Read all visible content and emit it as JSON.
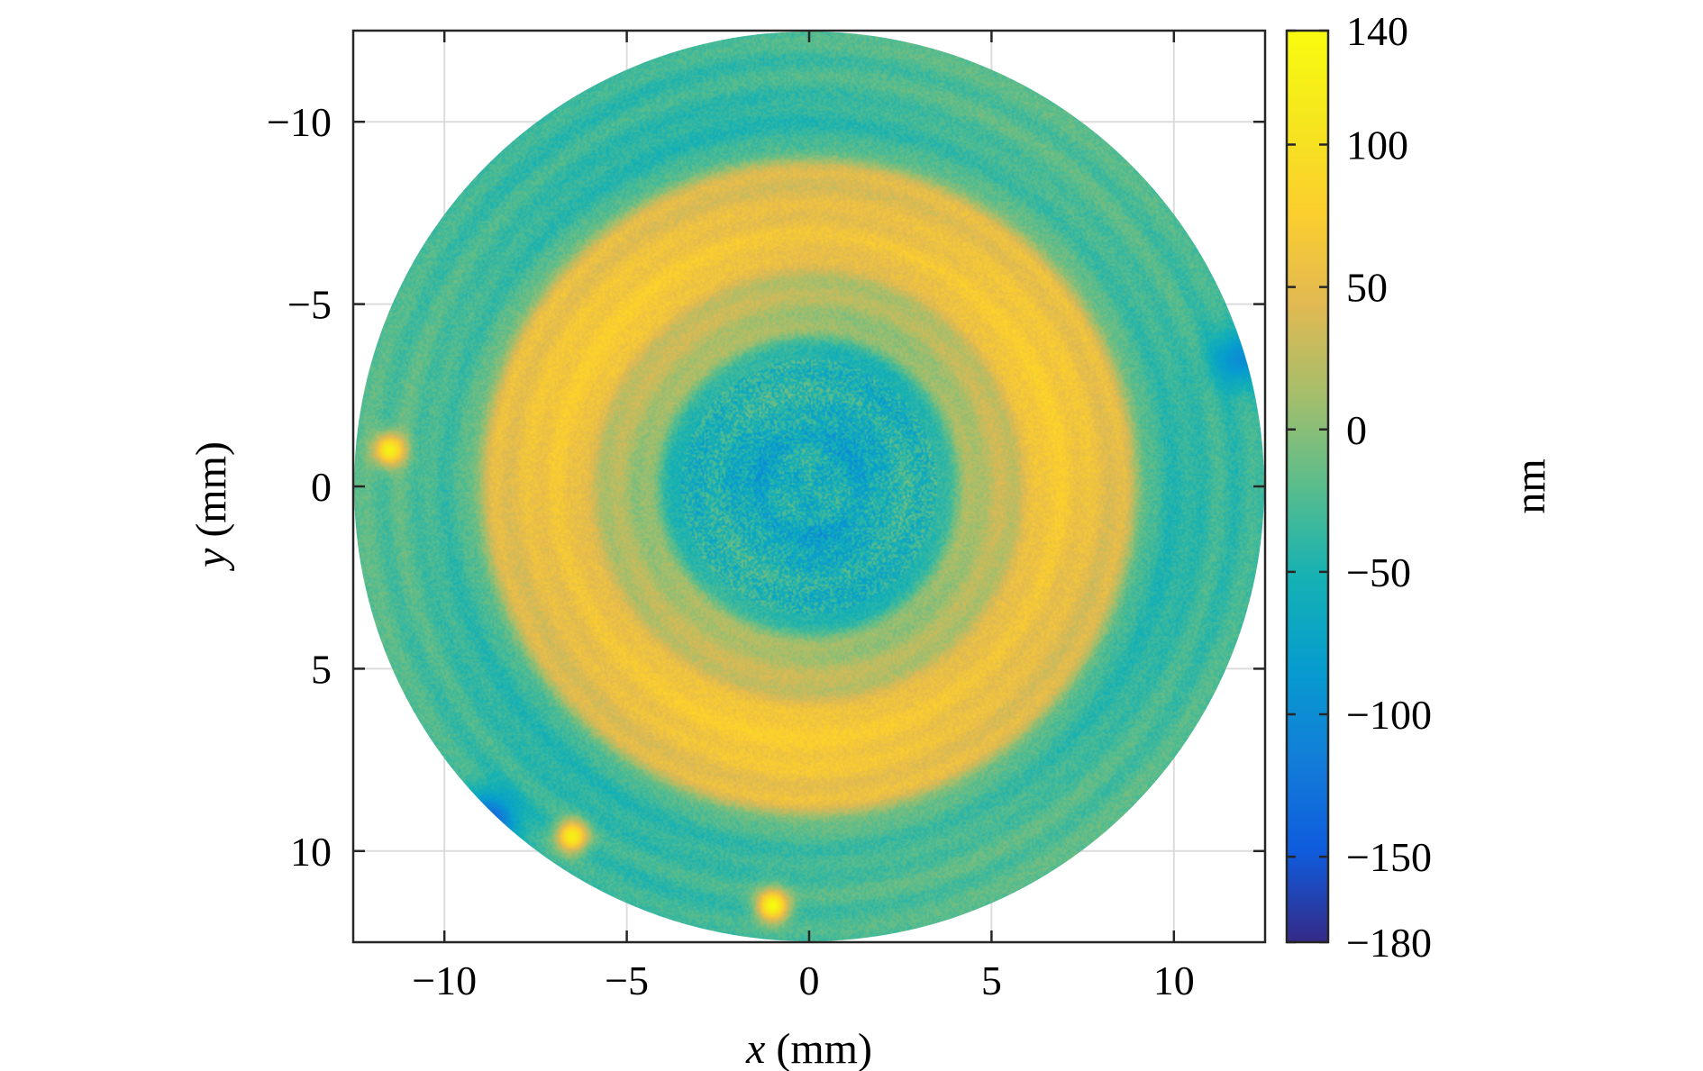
{
  "chart_data": {
    "type": "heatmap",
    "title": "",
    "xlabel": "x (mm)",
    "ylabel": "y (mm)",
    "xlabel_parts": {
      "var": "x",
      "unit": " (mm)"
    },
    "ylabel_parts": {
      "var": "y",
      "unit": " (mm)"
    },
    "xlim": [
      -12.5,
      12.5
    ],
    "ylim": [
      -12.5,
      12.5
    ],
    "y_axis_reversed": true,
    "x_ticks": [
      -10,
      -5,
      0,
      5,
      10
    ],
    "y_ticks": [
      -10,
      -5,
      0,
      5,
      10
    ],
    "x_tick_labels": [
      "−10",
      "−5",
      "0",
      "5",
      "10"
    ],
    "y_tick_labels": [
      "−10",
      "−5",
      "0",
      "5",
      "10"
    ],
    "grid": true,
    "aperture_radius": 12.5,
    "colormap": "parula",
    "colorbar": {
      "label": "nm",
      "range": [
        -180,
        140
      ],
      "ticks": [
        140,
        100,
        50,
        0,
        -50,
        -100,
        -150,
        -180
      ],
      "tick_labels": [
        "140",
        "100",
        "50",
        "0",
        "−50",
        "−100",
        "−150",
        "−180"
      ]
    },
    "radial_profile": {
      "r_mm": [
        0,
        1.5,
        2.5,
        3.5,
        4.5,
        5.5,
        6.5,
        7.5,
        8.5,
        9.5,
        10.5,
        11.5,
        12.5
      ],
      "value_nm": [
        -60,
        -58,
        -55,
        -40,
        0,
        35,
        55,
        70,
        40,
        -20,
        -45,
        -20,
        -30
      ]
    },
    "hot_spots": [
      {
        "x": -11.5,
        "y": -1.0,
        "value_nm": 125
      },
      {
        "x": -6.5,
        "y": 9.6,
        "value_nm": 125
      },
      {
        "x": -1.0,
        "y": 11.5,
        "value_nm": 140
      }
    ],
    "cold_regions": [
      {
        "x": -8.8,
        "y": 9.2,
        "value_nm": -160
      },
      {
        "x": 11.8,
        "y": -3.5,
        "value_nm": -110
      }
    ]
  }
}
